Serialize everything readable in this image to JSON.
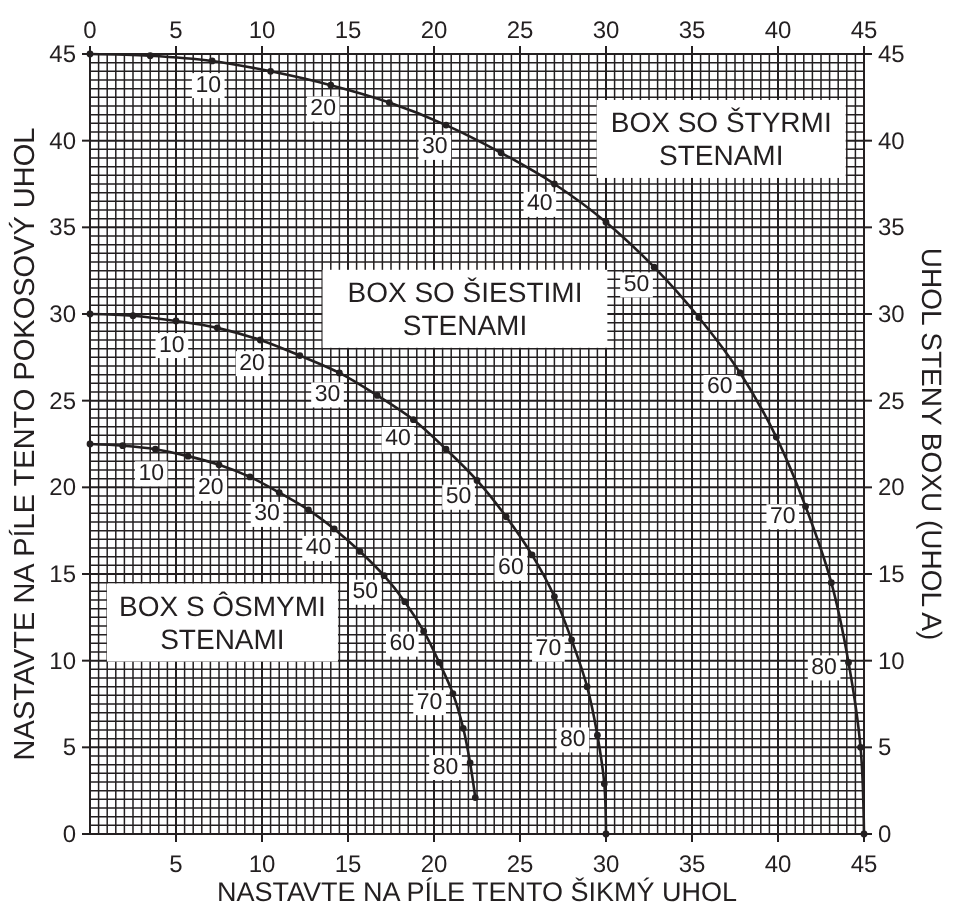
{
  "chart_data": {
    "type": "line",
    "xlabel": "NASTAVTE NA PÍLE TENTO ŠIKMÝ UHOL",
    "ylabel": "NASTAVTE NA PÍLE TENTO POKOSOVÝ UHOL",
    "y2label": "UHOL STENY BOXU (UHOL A)",
    "xlim": [
      0,
      45
    ],
    "ylim": [
      0,
      45
    ],
    "x2lim": [
      0,
      45
    ],
    "y2lim": [
      0,
      45
    ],
    "xticks": [
      {
        "value": 0,
        "label": null
      },
      {
        "value": 0.5,
        "label": null
      },
      {
        "value": 1,
        "label": null
      },
      {
        "value": 1.5,
        "label": null
      },
      {
        "value": 2,
        "label": null
      },
      {
        "value": 2.5,
        "label": null
      },
      {
        "value": 3,
        "label": null
      },
      {
        "value": 3.5,
        "label": null
      },
      {
        "value": 4,
        "label": null
      },
      {
        "value": 4.5,
        "label": null
      },
      5,
      {
        "value": 5.5,
        "label": null
      },
      {
        "value": 6,
        "label": null
      },
      {
        "value": 6.5,
        "label": null
      },
      {
        "value": 7,
        "label": null
      },
      {
        "value": 7.5,
        "label": null
      },
      {
        "value": 8,
        "label": null
      },
      {
        "value": 8.5,
        "label": null
      },
      {
        "value": 9,
        "label": null
      },
      {
        "value": 9.5,
        "label": null
      },
      10,
      {
        "value": 10.5,
        "label": null
      },
      {
        "value": 11,
        "label": null
      },
      {
        "value": 11.5,
        "label": null
      },
      {
        "value": 12,
        "label": null
      },
      {
        "value": 12.5,
        "label": null
      },
      {
        "value": 13,
        "label": null
      },
      {
        "value": 13.5,
        "label": null
      },
      {
        "value": 14,
        "label": null
      },
      {
        "value": 14.5,
        "label": null
      },
      15,
      {
        "value": 15.5,
        "label": null
      },
      {
        "value": 16,
        "label": null
      },
      {
        "value": 16.5,
        "label": null
      },
      {
        "value": 17,
        "label": null
      },
      {
        "value": 17.5,
        "label": null
      },
      {
        "value": 18,
        "label": null
      },
      {
        "value": 18.5,
        "label": null
      },
      {
        "value": 19,
        "label": null
      },
      {
        "value": 19.5,
        "label": null
      },
      20,
      {
        "value": 20.5,
        "label": null
      },
      {
        "value": 21,
        "label": null
      },
      {
        "value": 21.5,
        "label": null
      },
      {
        "value": 22,
        "label": null
      },
      {
        "value": 22.5,
        "label": null
      },
      {
        "value": 23,
        "label": null
      },
      {
        "value": 23.5,
        "label": null
      },
      {
        "value": 24,
        "label": null
      },
      {
        "value": 24.5,
        "label": null
      },
      25,
      {
        "value": 25.5,
        "label": null
      },
      {
        "value": 26,
        "label": null
      },
      {
        "value": 26.5,
        "label": null
      },
      {
        "value": 27,
        "label": null
      },
      {
        "value": 27.5,
        "label": null
      },
      {
        "value": 28,
        "label": null
      },
      {
        "value": 28.5,
        "label": null
      },
      {
        "value": 29,
        "label": null
      },
      {
        "value": 29.5,
        "label": null
      },
      30,
      {
        "value": 30.5,
        "label": null
      },
      {
        "value": 31,
        "label": null
      },
      {
        "value": 31.5,
        "label": null
      },
      {
        "value": 32,
        "label": null
      },
      {
        "value": 32.5,
        "label": null
      },
      {
        "value": 33,
        "label": null
      },
      {
        "value": 33.5,
        "label": null
      },
      {
        "value": 34,
        "label": null
      },
      {
        "value": 34.5,
        "label": null
      },
      35,
      {
        "value": 35.5,
        "label": null
      },
      {
        "value": 36,
        "label": null
      },
      {
        "value": 36.5,
        "label": null
      },
      {
        "value": 37,
        "label": null
      },
      {
        "value": 37.5,
        "label": null
      },
      {
        "value": 38,
        "label": null
      },
      {
        "value": 38.5,
        "label": null
      },
      {
        "value": 39,
        "label": null
      },
      {
        "value": 39.5,
        "label": null
      },
      40,
      {
        "value": 40.5,
        "label": null
      },
      {
        "value": 41,
        "label": null
      },
      {
        "value": 41.5,
        "label": null
      },
      {
        "value": 42,
        "label": null
      },
      {
        "value": 42.5,
        "label": null
      },
      {
        "value": 43,
        "label": null
      },
      {
        "value": 43.5,
        "label": null
      },
      {
        "value": 44,
        "label": null
      },
      {
        "value": 44.5,
        "label": null
      },
      45
    ],
    "yticks": [
      0,
      {
        "value": 0.5,
        "label": null
      },
      {
        "value": 1,
        "label": null
      },
      {
        "value": 1.5,
        "label": null
      },
      {
        "value": 2,
        "label": null
      },
      {
        "value": 2.5,
        "label": null
      },
      {
        "value": 3,
        "label": null
      },
      {
        "value": 3.5,
        "label": null
      },
      {
        "value": 4,
        "label": null
      },
      {
        "value": 4.5,
        "label": null
      },
      5,
      {
        "value": 5.5,
        "label": null
      },
      {
        "value": 6,
        "label": null
      },
      {
        "value": 6.5,
        "label": null
      },
      {
        "value": 7,
        "label": null
      },
      {
        "value": 7.5,
        "label": null
      },
      {
        "value": 8,
        "label": null
      },
      {
        "value": 8.5,
        "label": null
      },
      {
        "value": 9,
        "label": null
      },
      {
        "value": 9.5,
        "label": null
      },
      10,
      {
        "value": 10.5,
        "label": null
      },
      {
        "value": 11,
        "label": null
      },
      {
        "value": 11.5,
        "label": null
      },
      {
        "value": 12,
        "label": null
      },
      {
        "value": 12.5,
        "label": null
      },
      {
        "value": 13,
        "label": null
      },
      {
        "value": 13.5,
        "label": null
      },
      {
        "value": 14,
        "label": null
      },
      {
        "value": 14.5,
        "label": null
      },
      15,
      {
        "value": 15.5,
        "label": null
      },
      {
        "value": 16,
        "label": null
      },
      {
        "value": 16.5,
        "label": null
      },
      {
        "value": 17,
        "label": null
      },
      {
        "value": 17.5,
        "label": null
      },
      {
        "value": 18,
        "label": null
      },
      {
        "value": 18.5,
        "label": null
      },
      {
        "value": 19,
        "label": null
      },
      {
        "value": 19.5,
        "label": null
      },
      20,
      {
        "value": 20.5,
        "label": null
      },
      {
        "value": 21,
        "label": null
      },
      {
        "value": 21.5,
        "label": null
      },
      {
        "value": 22,
        "label": null
      },
      {
        "value": 22.5,
        "label": null
      },
      {
        "value": 23,
        "label": null
      },
      {
        "value": 23.5,
        "label": null
      },
      {
        "value": 24,
        "label": null
      },
      {
        "value": 24.5,
        "label": null
      },
      25,
      {
        "value": 25.5,
        "label": null
      },
      {
        "value": 26,
        "label": null
      },
      {
        "value": 26.5,
        "label": null
      },
      {
        "value": 27,
        "label": null
      },
      {
        "value": 27.5,
        "label": null
      },
      {
        "value": 28,
        "label": null
      },
      {
        "value": 28.5,
        "label": null
      },
      {
        "value": 29,
        "label": null
      },
      {
        "value": 29.5,
        "label": null
      },
      30,
      {
        "value": 30.5,
        "label": null
      },
      {
        "value": 31,
        "label": null
      },
      {
        "value": 31.5,
        "label": null
      },
      {
        "value": 32,
        "label": null
      },
      {
        "value": 32.5,
        "label": null
      },
      {
        "value": 33,
        "label": null
      },
      {
        "value": 33.5,
        "label": null
      },
      {
        "value": 34,
        "label": null
      },
      {
        "value": 34.5,
        "label": null
      },
      35,
      {
        "value": 35.5,
        "label": null
      },
      {
        "value": 36,
        "label": null
      },
      {
        "value": 36.5,
        "label": null
      },
      {
        "value": 37,
        "label": null
      },
      {
        "value": 37.5,
        "label": null
      },
      {
        "value": 38,
        "label": null
      },
      {
        "value": 38.5,
        "label": null
      },
      {
        "value": 39,
        "label": null
      },
      {
        "value": 39.5,
        "label": null
      },
      40,
      {
        "value": 40.5,
        "label": null
      },
      {
        "value": 41,
        "label": null
      },
      {
        "value": 41.5,
        "label": null
      },
      {
        "value": 42,
        "label": null
      },
      {
        "value": 42.5,
        "label": null
      },
      {
        "value": 43,
        "label": null
      },
      {
        "value": 43.5,
        "label": null
      },
      {
        "value": 44,
        "label": null
      },
      {
        "value": 44.5,
        "label": null
      },
      45
    ],
    "x2ticks": [
      0,
      5,
      10,
      15,
      20,
      25,
      30,
      35,
      40,
      45
    ],
    "y2ticks": [
      0,
      5,
      10,
      15,
      20,
      25,
      30,
      35,
      40,
      45
    ],
    "grid": true,
    "marker": "circle",
    "line_style": "solid",
    "series": [
      {
        "name": "BOX SO ŠTYRMI STENAMI",
        "color": "#231f20",
        "x": [
          0,
          3.5,
          7.1,
          10.5,
          14.0,
          17.4,
          20.7,
          23.9,
          27.0,
          30.0,
          32.8,
          35.4,
          37.8,
          39.9,
          41.6,
          43.1,
          44.1,
          44.8,
          45
        ],
        "values": [
          45,
          44.9,
          44.6,
          44.0,
          43.2,
          42.2,
          40.9,
          39.3,
          37.5,
          35.3,
          32.7,
          29.8,
          26.6,
          22.9,
          18.9,
          14.5,
          9.9,
          5.0,
          0
        ]
      },
      {
        "name": "BOX SO ŠIESTIMI STENAMI",
        "color": "#231f20",
        "x": [
          0,
          2.5,
          5.0,
          7.4,
          9.9,
          12.2,
          14.5,
          16.7,
          18.8,
          20.7,
          22.5,
          24.2,
          25.7,
          27.0,
          28.0,
          28.9,
          29.5,
          29.9,
          30
        ],
        "values": [
          30,
          29.9,
          29.6,
          29.2,
          28.5,
          27.6,
          26.6,
          25.3,
          23.9,
          22.2,
          20.4,
          18.3,
          16.1,
          13.7,
          11.2,
          8.5,
          5.7,
          2.9,
          0
        ]
      },
      {
        "name": "BOX S ÔSMYMI STENAMI",
        "color": "#231f20",
        "x": [
          0,
          1.9,
          3.8,
          5.7,
          7.5,
          9.3,
          11.0,
          12.7,
          14.2,
          15.7,
          17.1,
          18.3,
          19.4,
          20.3,
          21.1,
          21.7,
          22.1,
          22.4
        ],
        "values": [
          22.5,
          22.4,
          22.2,
          21.8,
          21.3,
          20.6,
          19.7,
          18.7,
          17.6,
          16.3,
          14.9,
          13.4,
          11.7,
          9.9,
          8.1,
          6.1,
          4.1,
          2.1
        ]
      }
    ],
    "annotations": [
      {
        "text": "10",
        "x": 7.1,
        "y": 44.6
      },
      {
        "text": "20",
        "x": 14.0,
        "y": 43.2
      },
      {
        "text": "30",
        "x": 20.7,
        "y": 40.9
      },
      {
        "text": "40",
        "x": 27.0,
        "y": 37.5
      },
      {
        "text": "50",
        "x": 32.8,
        "y": 32.7
      },
      {
        "text": "60",
        "x": 37.8,
        "y": 26.6
      },
      {
        "text": "70",
        "x": 41.6,
        "y": 18.9
      },
      {
        "text": "80",
        "x": 44.1,
        "y": 9.9
      },
      {
        "text": "10",
        "x": 5.0,
        "y": 29.6
      },
      {
        "text": "20",
        "x": 9.9,
        "y": 28.5
      },
      {
        "text": "30",
        "x": 14.5,
        "y": 26.6
      },
      {
        "text": "40",
        "x": 18.8,
        "y": 23.9
      },
      {
        "text": "50",
        "x": 22.5,
        "y": 20.4
      },
      {
        "text": "60",
        "x": 25.7,
        "y": 16.1
      },
      {
        "text": "70",
        "x": 28.0,
        "y": 11.2
      },
      {
        "text": "80",
        "x": 29.5,
        "y": 5.7
      },
      {
        "text": "10",
        "x": 3.8,
        "y": 22.2
      },
      {
        "text": "20",
        "x": 7.5,
        "y": 21.3
      },
      {
        "text": "30",
        "x": 11.0,
        "y": 19.7
      },
      {
        "text": "40",
        "x": 14.2,
        "y": 17.6
      },
      {
        "text": "50",
        "x": 17.1,
        "y": 14.9
      },
      {
        "text": "60",
        "x": 19.4,
        "y": 11.7
      },
      {
        "text": "70",
        "x": 21.1,
        "y": 8.1
      },
      {
        "text": "80",
        "x": 22.1,
        "y": 4.1
      }
    ]
  }
}
